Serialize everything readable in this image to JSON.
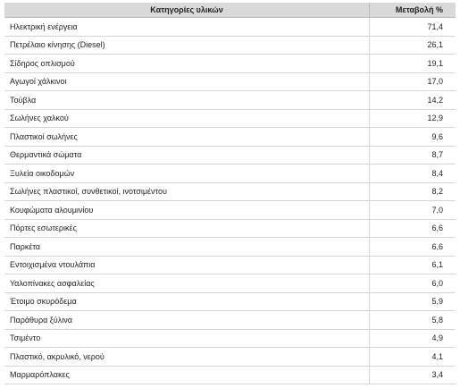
{
  "table": {
    "header": [
      "Κατηγορίες υλικών",
      "Μεταβολή %"
    ],
    "rows": [
      [
        "Ηλεκτρική ενέργεια",
        "71,4"
      ],
      [
        "Πετρέλαιο κίνησης (Diesel)",
        "26,1"
      ],
      [
        "Σίδηρος οπλισμού",
        "19,1"
      ],
      [
        "Αγωγοί χάλκινοι",
        "17,0"
      ],
      [
        "Τούβλα",
        "14,2"
      ],
      [
        "Σωλήνες χαλκού",
        "12,9"
      ],
      [
        "Πλαστικοί σωλήνες",
        "9,6"
      ],
      [
        "Θερμαντικά σώματα",
        "8,7"
      ],
      [
        "Ξυλεία οικοδομών",
        "8,4"
      ],
      [
        "Σωλήνες πλαστικοί, συνθετικοί, ινοτσιμέντου",
        "8,2"
      ],
      [
        "Κουφώματα αλουμινίου",
        "7,0"
      ],
      [
        "Πόρτες εσωτερικές",
        "6,6"
      ],
      [
        "Παρκέτα",
        "6,6"
      ],
      [
        "Εντοιχισμένα ντουλάπια",
        "6,1"
      ],
      [
        "Υαλοπίνακες ασφαλείας",
        "6,0"
      ],
      [
        "Έτοιμο σκυρόδεμα",
        "5,9"
      ],
      [
        "Παράθυρα ξύλινα",
        "5,8"
      ],
      [
        "Τσιμέντο",
        "4,9"
      ],
      [
        "Πλαστικό, ακρυλικό, νερού",
        "4,1"
      ],
      [
        "Μαρμαρόπλακες",
        "3,4"
      ]
    ]
  }
}
